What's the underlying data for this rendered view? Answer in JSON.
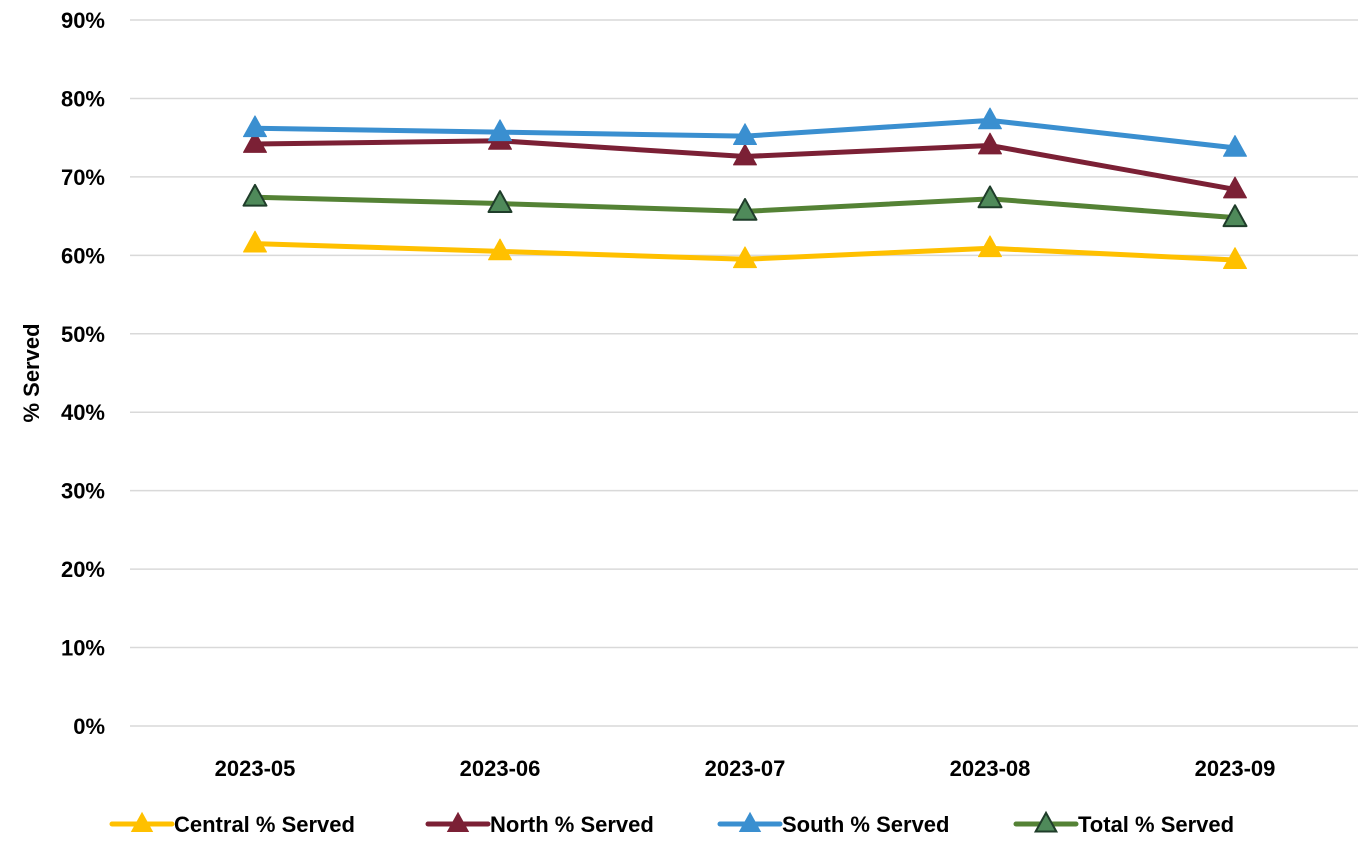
{
  "chart_data": {
    "type": "line",
    "title": "",
    "xlabel": "",
    "ylabel": "% Served",
    "categories": [
      "2023-05",
      "2023-06",
      "2023-07",
      "2023-08",
      "2023-09"
    ],
    "ylim": [
      0,
      0.9
    ],
    "yticks": [
      0,
      0.1,
      0.2,
      0.3,
      0.4,
      0.5,
      0.6,
      0.7,
      0.8,
      0.9
    ],
    "ytick_labels": [
      "0%",
      "10%",
      "20%",
      "30%",
      "40%",
      "50%",
      "60%",
      "70%",
      "80%",
      "90%"
    ],
    "grid": true,
    "legend_position": "bottom",
    "series": [
      {
        "name": "Central % Served",
        "color": "#ffc000",
        "marker": "triangle",
        "values": [
          0.615,
          0.605,
          0.595,
          0.609,
          0.594
        ]
      },
      {
        "name": "North % Served",
        "color": "#7b2035",
        "marker": "triangle",
        "values": [
          0.742,
          0.746,
          0.726,
          0.74,
          0.684
        ]
      },
      {
        "name": "South % Served",
        "color": "#3a8fd0",
        "marker": "triangle",
        "values": [
          0.762,
          0.757,
          0.752,
          0.772,
          0.737
        ]
      },
      {
        "name": "Total % Served",
        "color": "#548235",
        "marker": "triangle",
        "marker_fill": "#4f8a5a",
        "marker_stroke": "#1f3d2a",
        "values": [
          0.674,
          0.666,
          0.656,
          0.672,
          0.648
        ]
      }
    ]
  }
}
